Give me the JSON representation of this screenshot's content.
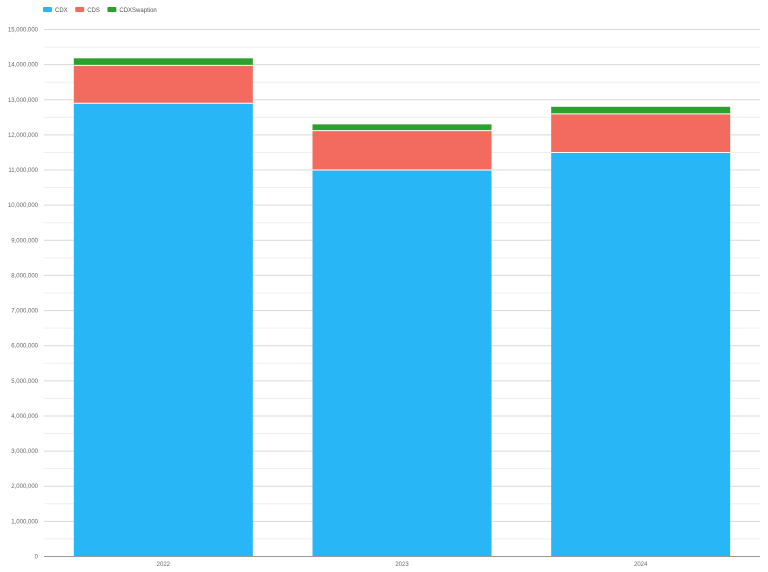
{
  "chart_data": {
    "type": "bar",
    "stacked": true,
    "categories": [
      "2022",
      "2023",
      "2024"
    ],
    "series": [
      {
        "name": "CDX",
        "color": "#29b6f6",
        "values": [
          12900000,
          11000000,
          11500000
        ]
      },
      {
        "name": "CDS",
        "color": "#f26b5e",
        "values": [
          1080000,
          1120000,
          1100000
        ]
      },
      {
        "name": "CDXSwaption",
        "color": "#2ca02c",
        "values": [
          200000,
          180000,
          200000
        ]
      }
    ],
    "ylim": [
      0,
      15000000
    ],
    "yticks": [
      0,
      1000000,
      2000000,
      3000000,
      4000000,
      5000000,
      6000000,
      7000000,
      8000000,
      9000000,
      10000000,
      11000000,
      12000000,
      13000000,
      14000000,
      15000000
    ],
    "ytick_labels": [
      "0",
      "1,000,000",
      "2,000,000",
      "3,000,000",
      "4,000,000",
      "5,000,000",
      "6,000,000",
      "7,000,000",
      "8,000,000",
      "9,000,000",
      "10,000,000",
      "11,000,000",
      "12,000,000",
      "13,000,000",
      "14,000,000",
      "15,000,000"
    ],
    "grid": true,
    "legend": "top-left"
  }
}
